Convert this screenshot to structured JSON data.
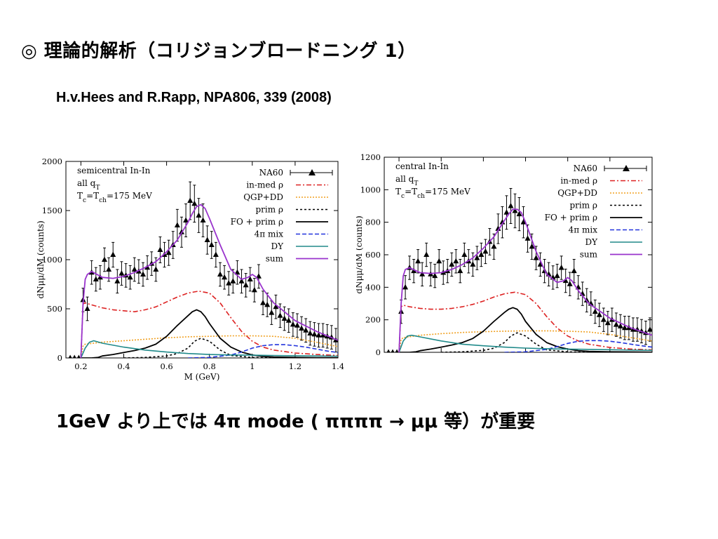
{
  "slide": {
    "title": "◎ 理論的解析（コリジョンブロードニング 1）",
    "reference": "H.v.Hees and R.Rapp, NPA806, 339 (2008)",
    "conclusion": "1GeV より上では 4π mode ( ππππ → μμ 等）が重要"
  },
  "chart_data": [
    {
      "type": "line",
      "xlabel": "M (GeV)",
      "ylabel": "dNμμ/dM (counts)",
      "xlim": [
        0.13,
        1.4
      ],
      "ylim": [
        0,
        2000
      ],
      "xticks": [
        "0.2",
        "0.4",
        "0.6",
        "0.8",
        "1",
        "1.2",
        "1.4"
      ],
      "yticks": [
        "0",
        "500",
        "1000",
        "1500",
        "2000"
      ],
      "annotations": [
        "semicentral In-In",
        "all q",
        "T",
        "=175 MeV"
      ],
      "legend_position": "top-right",
      "series": [
        {
          "name": "NA60",
          "style": "points",
          "color": "#000000",
          "x": [
            0.15,
            0.17,
            0.19,
            0.21,
            0.23,
            0.25,
            0.27,
            0.29,
            0.31,
            0.33,
            0.35,
            0.37,
            0.39,
            0.41,
            0.43,
            0.45,
            0.47,
            0.49,
            0.51,
            0.53,
            0.55,
            0.57,
            0.59,
            0.61,
            0.63,
            0.65,
            0.67,
            0.69,
            0.71,
            0.73,
            0.75,
            0.77,
            0.79,
            0.81,
            0.83,
            0.85,
            0.87,
            0.89,
            0.91,
            0.93,
            0.95,
            0.97,
            0.99,
            1.01,
            1.03,
            1.05,
            1.07,
            1.09,
            1.11,
            1.13,
            1.15,
            1.17,
            1.19,
            1.21,
            1.23,
            1.25,
            1.27,
            1.29,
            1.31,
            1.33,
            1.35,
            1.37,
            1.39
          ],
          "y": [
            0,
            0,
            0,
            590,
            500,
            870,
            800,
            820,
            1000,
            900,
            1050,
            780,
            860,
            840,
            820,
            900,
            880,
            850,
            920,
            960,
            900,
            1100,
            1050,
            1070,
            1150,
            1350,
            1280,
            1400,
            1600,
            1570,
            1450,
            1400,
            1200,
            1150,
            1050,
            850,
            820,
            760,
            780,
            870,
            780,
            740,
            800,
            690,
            830,
            560,
            540,
            460,
            520,
            430,
            400,
            380,
            340,
            330,
            300,
            280,
            250,
            240,
            230,
            230,
            220,
            210,
            180
          ]
        },
        {
          "name": "in-med ρ",
          "style": "dashdot",
          "color": "#dd2222",
          "x": [
            0.2,
            0.21,
            0.22,
            0.25,
            0.3,
            0.35,
            0.4,
            0.45,
            0.5,
            0.55,
            0.6,
            0.65,
            0.7,
            0.75,
            0.8,
            0.85,
            0.9,
            0.95,
            1.0,
            1.05,
            1.1,
            1.2,
            1.3,
            1.4
          ],
          "y": [
            0,
            550,
            560,
            540,
            510,
            490,
            480,
            470,
            490,
            520,
            570,
            620,
            660,
            680,
            660,
            560,
            410,
            270,
            170,
            110,
            80,
            50,
            35,
            25
          ]
        },
        {
          "name": "QGP+DD",
          "style": "dotted",
          "color": "#f0a020",
          "x": [
            0.2,
            0.21,
            0.22,
            0.3,
            0.4,
            0.5,
            0.6,
            0.7,
            0.8,
            0.9,
            1.0,
            1.1,
            1.2,
            1.3,
            1.4
          ],
          "y": [
            0,
            120,
            140,
            160,
            175,
            190,
            205,
            215,
            220,
            225,
            225,
            220,
            200,
            160,
            115
          ]
        },
        {
          "name": "prim ρ",
          "style": "dashed-fine",
          "color": "#000000",
          "x": [
            0.4,
            0.5,
            0.6,
            0.65,
            0.7,
            0.73,
            0.76,
            0.8,
            0.85,
            0.9,
            1.0,
            1.1
          ],
          "y": [
            0,
            5,
            20,
            45,
            100,
            170,
            200,
            170,
            80,
            25,
            5,
            0
          ]
        },
        {
          "name": "FO + prim ρ",
          "style": "solid",
          "color": "#000000",
          "x": [
            0.2,
            0.25,
            0.28,
            0.3,
            0.35,
            0.4,
            0.45,
            0.5,
            0.55,
            0.6,
            0.65,
            0.7,
            0.72,
            0.74,
            0.76,
            0.78,
            0.8,
            0.85,
            0.9,
            0.95,
            1.0,
            1.05,
            1.1,
            1.2,
            1.3,
            1.4
          ],
          "y": [
            0,
            0,
            5,
            20,
            35,
            55,
            75,
            100,
            140,
            220,
            330,
            430,
            470,
            490,
            470,
            420,
            350,
            200,
            110,
            60,
            30,
            15,
            10,
            5,
            3,
            2
          ]
        },
        {
          "name": "4π mix",
          "style": "dashed",
          "color": "#2233dd",
          "x": [
            0.7,
            0.8,
            0.9,
            0.95,
            1.0,
            1.05,
            1.1,
            1.15,
            1.2,
            1.25,
            1.3,
            1.35,
            1.4
          ],
          "y": [
            0,
            5,
            30,
            60,
            100,
            125,
            135,
            135,
            125,
            110,
            90,
            70,
            55
          ]
        },
        {
          "name": "DY",
          "style": "solid",
          "color": "#208a8a",
          "x": [
            0.2,
            0.22,
            0.24,
            0.26,
            0.3,
            0.4,
            0.5,
            0.6,
            0.7,
            0.8,
            0.9,
            1.0,
            1.1,
            1.2,
            1.3,
            1.4
          ],
          "y": [
            0,
            100,
            160,
            175,
            150,
            110,
            80,
            60,
            45,
            35,
            30,
            28,
            25,
            22,
            20,
            18
          ]
        },
        {
          "name": "sum",
          "style": "solid",
          "color": "#9933cc",
          "x": [
            0.2,
            0.21,
            0.22,
            0.23,
            0.25,
            0.3,
            0.35,
            0.4,
            0.45,
            0.5,
            0.55,
            0.6,
            0.65,
            0.7,
            0.72,
            0.74,
            0.76,
            0.78,
            0.8,
            0.85,
            0.9,
            0.95,
            0.98,
            1.0,
            1.02,
            1.05,
            1.1,
            1.2,
            1.3,
            1.4
          ],
          "y": [
            0,
            550,
            800,
            850,
            880,
            820,
            810,
            830,
            870,
            920,
            980,
            1080,
            1200,
            1380,
            1470,
            1540,
            1560,
            1520,
            1420,
            1150,
            900,
            800,
            820,
            850,
            820,
            700,
            560,
            380,
            270,
            180
          ]
        }
      ]
    },
    {
      "type": "line",
      "xlabel": "",
      "ylabel": "dNμμ/dM (counts)",
      "xlim": [
        0.13,
        1.4
      ],
      "ylim": [
        0,
        1200
      ],
      "xticks": [],
      "yticks": [
        "0",
        "200",
        "400",
        "600",
        "800",
        "1000",
        "1200"
      ],
      "annotations": [
        "central In-In",
        "all q",
        "T",
        "=175 MeV"
      ],
      "legend_position": "top-right",
      "series": [
        {
          "name": "NA60",
          "style": "points",
          "color": "#000000",
          "x": [
            0.15,
            0.17,
            0.19,
            0.21,
            0.23,
            0.25,
            0.27,
            0.29,
            0.31,
            0.33,
            0.35,
            0.37,
            0.39,
            0.41,
            0.43,
            0.45,
            0.47,
            0.49,
            0.51,
            0.53,
            0.55,
            0.57,
            0.59,
            0.61,
            0.63,
            0.65,
            0.67,
            0.69,
            0.71,
            0.73,
            0.75,
            0.77,
            0.79,
            0.81,
            0.83,
            0.85,
            0.87,
            0.89,
            0.91,
            0.93,
            0.95,
            0.97,
            0.99,
            1.01,
            1.03,
            1.05,
            1.07,
            1.09,
            1.11,
            1.13,
            1.15,
            1.17,
            1.19,
            1.21,
            1.23,
            1.25,
            1.27,
            1.29,
            1.31,
            1.33,
            1.35,
            1.37,
            1.39
          ],
          "y": [
            0,
            0,
            0,
            250,
            400,
            520,
            500,
            560,
            480,
            600,
            480,
            470,
            560,
            490,
            500,
            540,
            560,
            500,
            600,
            560,
            540,
            580,
            600,
            620,
            680,
            650,
            760,
            800,
            860,
            900,
            870,
            850,
            800,
            700,
            650,
            580,
            540,
            500,
            480,
            460,
            470,
            520,
            440,
            420,
            500,
            400,
            360,
            320,
            300,
            250,
            230,
            200,
            180,
            200,
            170,
            160,
            150,
            150,
            140,
            140,
            130,
            120,
            140
          ]
        },
        {
          "name": "in-med ρ",
          "style": "dashdot",
          "color": "#dd2222",
          "x": [
            0.2,
            0.21,
            0.22,
            0.25,
            0.3,
            0.35,
            0.4,
            0.45,
            0.5,
            0.55,
            0.6,
            0.65,
            0.7,
            0.75,
            0.8,
            0.85,
            0.9,
            0.95,
            1.0,
            1.05,
            1.1,
            1.2,
            1.3,
            1.4
          ],
          "y": [
            0,
            280,
            290,
            280,
            270,
            265,
            265,
            270,
            280,
            295,
            315,
            340,
            360,
            370,
            355,
            300,
            220,
            150,
            100,
            70,
            50,
            30,
            20,
            15
          ]
        },
        {
          "name": "QGP+DD",
          "style": "dotted",
          "color": "#f0a020",
          "x": [
            0.2,
            0.21,
            0.22,
            0.3,
            0.4,
            0.5,
            0.6,
            0.7,
            0.8,
            0.9,
            1.0,
            1.1,
            1.2,
            1.3,
            1.4
          ],
          "y": [
            0,
            80,
            90,
            105,
            115,
            122,
            127,
            130,
            132,
            132,
            130,
            125,
            110,
            90,
            70
          ]
        },
        {
          "name": "prim ρ",
          "style": "dashed-fine",
          "color": "#000000",
          "x": [
            0.4,
            0.5,
            0.6,
            0.65,
            0.7,
            0.73,
            0.76,
            0.8,
            0.85,
            0.9,
            1.0,
            1.1
          ],
          "y": [
            0,
            3,
            12,
            25,
            60,
            100,
            120,
            100,
            50,
            15,
            3,
            0
          ]
        },
        {
          "name": "FO + prim ρ",
          "style": "solid",
          "color": "#000000",
          "x": [
            0.2,
            0.25,
            0.28,
            0.3,
            0.35,
            0.4,
            0.45,
            0.5,
            0.55,
            0.6,
            0.65,
            0.7,
            0.72,
            0.74,
            0.76,
            0.78,
            0.8,
            0.85,
            0.9,
            0.95,
            1.0,
            1.05,
            1.1,
            1.2,
            1.3,
            1.4
          ],
          "y": [
            0,
            0,
            3,
            10,
            20,
            32,
            45,
            60,
            85,
            130,
            190,
            245,
            265,
            275,
            265,
            235,
            190,
            110,
            60,
            35,
            20,
            10,
            6,
            3,
            2,
            1
          ]
        },
        {
          "name": "4π mix",
          "style": "dashed",
          "color": "#2233dd",
          "x": [
            0.7,
            0.8,
            0.9,
            0.95,
            1.0,
            1.05,
            1.1,
            1.15,
            1.2,
            1.25,
            1.3,
            1.35,
            1.4
          ],
          "y": [
            0,
            3,
            18,
            35,
            55,
            68,
            72,
            72,
            68,
            60,
            50,
            40,
            32
          ]
        },
        {
          "name": "DY",
          "style": "solid",
          "color": "#208a8a",
          "x": [
            0.2,
            0.22,
            0.24,
            0.26,
            0.3,
            0.4,
            0.5,
            0.6,
            0.7,
            0.8,
            0.9,
            1.0,
            1.1,
            1.2,
            1.3,
            1.4
          ],
          "y": [
            0,
            70,
            100,
            105,
            95,
            70,
            50,
            40,
            32,
            26,
            22,
            20,
            18,
            16,
            14,
            12
          ]
        },
        {
          "name": "sum",
          "style": "solid",
          "color": "#9933cc",
          "x": [
            0.2,
            0.21,
            0.22,
            0.23,
            0.25,
            0.3,
            0.35,
            0.4,
            0.45,
            0.5,
            0.55,
            0.6,
            0.65,
            0.7,
            0.72,
            0.74,
            0.76,
            0.78,
            0.8,
            0.85,
            0.9,
            0.95,
            0.98,
            1.0,
            1.02,
            1.05,
            1.1,
            1.2,
            1.3,
            1.4
          ],
          "y": [
            0,
            300,
            470,
            510,
            520,
            490,
            485,
            490,
            510,
            540,
            580,
            640,
            710,
            810,
            850,
            880,
            880,
            860,
            800,
            620,
            480,
            430,
            440,
            460,
            440,
            380,
            300,
            210,
            150,
            105
          ]
        }
      ]
    }
  ]
}
